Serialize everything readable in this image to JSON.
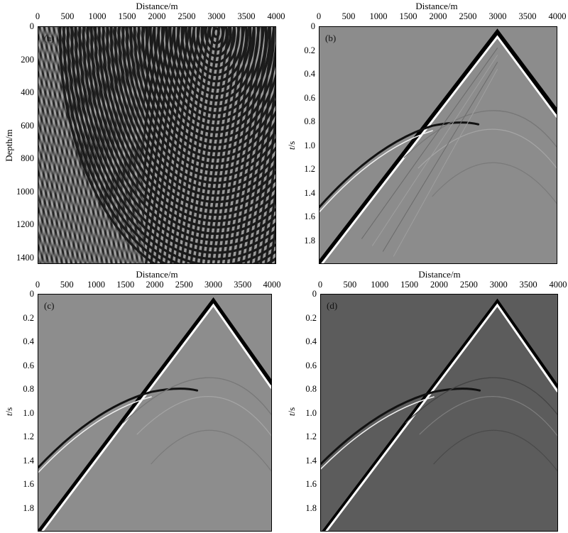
{
  "panels": [
    {
      "label": "(a)",
      "xtitle": "Distance/m",
      "ytitle": "Depth/m",
      "xticks": [
        "0",
        "500",
        "1000",
        "1500",
        "2000",
        "2500",
        "3000",
        "3500",
        "4000"
      ],
      "yticks": [
        "0",
        "200",
        "400",
        "600",
        "800",
        "1000",
        "1200",
        "1400"
      ]
    },
    {
      "label": "(b)",
      "xtitle": "Distance/m",
      "ytitle_italic": "t",
      "ytitle_unit": "/s",
      "xticks": [
        "0",
        "500",
        "1000",
        "1500",
        "2000",
        "2500",
        "3000",
        "3500",
        "4000"
      ],
      "yticks": [
        "0",
        "0.2",
        "0.4",
        "0.6",
        "0.8",
        "1.0",
        "1.2",
        "1.4",
        "1.6",
        "1.8"
      ]
    },
    {
      "label": "(c)",
      "xtitle": "Distance/m",
      "ytitle_italic": "t",
      "ytitle_unit": "/s",
      "xticks": [
        "0",
        "500",
        "1000",
        "1500",
        "2000",
        "2500",
        "3000",
        "3500",
        "4000"
      ],
      "yticks": [
        "0",
        "0.2",
        "0.4",
        "0.6",
        "0.8",
        "1.0",
        "1.2",
        "1.4",
        "1.6",
        "1.8"
      ]
    },
    {
      "label": "(d)",
      "xtitle": "Distance/m",
      "ytitle_italic": "t",
      "ytitle_unit": "/s",
      "xticks": [
        "0",
        "500",
        "1000",
        "1500",
        "2000",
        "2500",
        "3000",
        "3500",
        "4000"
      ],
      "yticks": [
        "0",
        "0.2",
        "0.4",
        "0.6",
        "0.8",
        "1.0",
        "1.2",
        "1.4",
        "1.6",
        "1.8"
      ]
    }
  ]
}
